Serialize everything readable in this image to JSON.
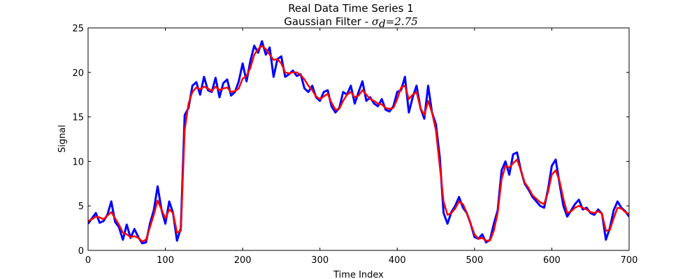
{
  "chart_data": {
    "type": "line",
    "title": "Real Data Time Series 1",
    "subtitle_prefix": "Gaussian Filter - ",
    "subtitle_sigma_symbol": "σ",
    "subtitle_sigma_subscript": "d",
    "subtitle_sigma_value": "=2.75",
    "xlabel": "Time Index",
    "ylabel": "Signal",
    "xlim": [
      0,
      700
    ],
    "ylim": [
      0,
      25
    ],
    "xticks": [
      "0",
      "100",
      "200",
      "300",
      "400",
      "500",
      "600",
      "700"
    ],
    "yticks": [
      "0",
      "5",
      "10",
      "15",
      "20",
      "25"
    ],
    "grid": false,
    "legend": "none",
    "series": [
      {
        "color": "#0000ff",
        "x": [
          0,
          5,
          10,
          15,
          20,
          25,
          30,
          35,
          40,
          45,
          50,
          55,
          60,
          65,
          70,
          75,
          80,
          85,
          90,
          95,
          100,
          105,
          110,
          115,
          120,
          125,
          130,
          135,
          140,
          145,
          150,
          155,
          160,
          165,
          170,
          175,
          180,
          185,
          190,
          195,
          200,
          205,
          210,
          215,
          220,
          225,
          230,
          235,
          240,
          245,
          250,
          255,
          260,
          265,
          270,
          275,
          280,
          285,
          290,
          295,
          300,
          305,
          310,
          315,
          320,
          325,
          330,
          335,
          340,
          345,
          350,
          355,
          360,
          365,
          370,
          375,
          380,
          385,
          390,
          395,
          400,
          405,
          410,
          415,
          420,
          425,
          430,
          435,
          440,
          445,
          450,
          455,
          460,
          465,
          470,
          475,
          480,
          485,
          490,
          495,
          500,
          505,
          510,
          515,
          520,
          525,
          530,
          535,
          540,
          545,
          550,
          555,
          560,
          565,
          570,
          575,
          580,
          585,
          590,
          595,
          600,
          605,
          610,
          615,
          620,
          625,
          630,
          635,
          640,
          645,
          650,
          655,
          660,
          665,
          670,
          675,
          680,
          685,
          690,
          695,
          700
        ],
        "values": [
          3.0,
          3.6,
          4.2,
          3.1,
          3.3,
          4.0,
          5.5,
          3.2,
          2.6,
          1.2,
          2.9,
          1.4,
          2.4,
          1.5,
          0.8,
          0.9,
          3.0,
          4.5,
          7.2,
          4.6,
          3.0,
          5.5,
          4.2,
          1.1,
          2.5,
          15.2,
          16.0,
          18.5,
          18.9,
          17.5,
          19.5,
          18.0,
          17.8,
          19.4,
          17.2,
          18.8,
          19.2,
          17.4,
          17.8,
          19.0,
          21.0,
          19.0,
          21.3,
          23.0,
          22.2,
          23.5,
          22.0,
          22.8,
          19.5,
          21.5,
          21.8,
          19.5,
          19.8,
          20.2,
          19.6,
          19.8,
          18.2,
          17.8,
          18.5,
          17.2,
          16.8,
          17.8,
          18.0,
          16.2,
          15.5,
          16.0,
          17.8,
          17.5,
          18.5,
          16.5,
          17.8,
          19.0,
          16.8,
          17.2,
          16.5,
          16.2,
          17.0,
          15.8,
          15.6,
          16.2,
          17.8,
          18.0,
          19.5,
          15.5,
          17.2,
          18.5,
          16.0,
          14.8,
          18.5,
          15.5,
          14.2,
          10.5,
          4.2,
          3.0,
          4.3,
          5.0,
          6.0,
          4.8,
          4.2,
          3.0,
          1.5,
          1.3,
          1.8,
          0.9,
          1.2,
          3.0,
          4.5,
          9.0,
          10.0,
          8.5,
          10.8,
          11.0,
          9.0,
          7.5,
          6.8,
          6.0,
          5.5,
          5.0,
          4.8,
          6.8,
          9.5,
          10.2,
          7.5,
          5.0,
          3.8,
          4.5,
          5.2,
          5.7,
          4.6,
          4.8,
          4.2,
          4.0,
          4.6,
          4.1,
          1.2,
          2.5,
          4.5,
          5.5,
          4.8,
          4.4,
          3.8
        ]
      },
      {
        "color": "#ff0000",
        "x": [
          0,
          5,
          10,
          15,
          20,
          25,
          30,
          35,
          40,
          45,
          50,
          55,
          60,
          65,
          70,
          75,
          80,
          85,
          90,
          95,
          100,
          105,
          110,
          115,
          120,
          125,
          130,
          135,
          140,
          145,
          150,
          155,
          160,
          165,
          170,
          175,
          180,
          185,
          190,
          195,
          200,
          205,
          210,
          215,
          220,
          225,
          230,
          235,
          240,
          245,
          250,
          255,
          260,
          265,
          270,
          275,
          280,
          285,
          290,
          295,
          300,
          305,
          310,
          315,
          320,
          325,
          330,
          335,
          340,
          345,
          350,
          355,
          360,
          365,
          370,
          375,
          380,
          385,
          390,
          395,
          400,
          405,
          410,
          415,
          420,
          425,
          430,
          435,
          440,
          445,
          450,
          455,
          460,
          465,
          470,
          475,
          480,
          485,
          490,
          495,
          500,
          505,
          510,
          515,
          520,
          525,
          530,
          535,
          540,
          545,
          550,
          555,
          560,
          565,
          570,
          575,
          580,
          585,
          590,
          595,
          600,
          605,
          610,
          615,
          620,
          625,
          630,
          635,
          640,
          645,
          650,
          655,
          660,
          665,
          670,
          675,
          680,
          685,
          690,
          695,
          700
        ],
        "values": [
          3.3,
          3.5,
          3.8,
          3.7,
          3.5,
          3.9,
          4.3,
          3.6,
          2.9,
          2.0,
          1.8,
          1.5,
          1.6,
          1.4,
          1.0,
          1.2,
          2.6,
          4.0,
          5.6,
          4.6,
          3.6,
          4.6,
          4.2,
          2.0,
          2.2,
          13.5,
          16.5,
          17.8,
          18.3,
          18.1,
          18.4,
          18.2,
          17.9,
          18.4,
          18.0,
          18.2,
          18.3,
          17.8,
          17.9,
          18.2,
          19.3,
          19.6,
          20.5,
          22.0,
          22.6,
          23.0,
          22.6,
          22.0,
          21.4,
          21.5,
          21.0,
          20.0,
          19.9,
          20.0,
          20.0,
          19.7,
          19.2,
          18.5,
          18.0,
          17.3,
          17.0,
          17.3,
          17.6,
          16.6,
          15.8,
          15.9,
          16.8,
          17.5,
          17.8,
          17.2,
          17.4,
          18.0,
          17.5,
          17.0,
          16.8,
          16.5,
          16.4,
          16.0,
          15.9,
          16.0,
          17.0,
          18.3,
          18.5,
          17.0,
          17.5,
          17.8,
          16.0,
          15.2,
          16.8,
          15.5,
          13.5,
          9.5,
          5.5,
          4.0,
          4.2,
          4.7,
          5.5,
          5.2,
          4.2,
          3.0,
          1.8,
          1.3,
          1.4,
          1.1,
          1.1,
          2.2,
          4.2,
          8.0,
          9.5,
          9.3,
          9.8,
          10.2,
          9.0,
          7.6,
          7.0,
          6.2,
          5.8,
          5.4,
          5.2,
          6.5,
          8.5,
          9.0,
          7.8,
          5.8,
          4.2,
          4.4,
          4.8,
          5.0,
          4.8,
          4.6,
          4.3,
          4.2,
          4.4,
          4.1,
          2.2,
          2.3,
          3.6,
          4.8,
          4.7,
          4.3,
          4.1
        ]
      }
    ]
  }
}
